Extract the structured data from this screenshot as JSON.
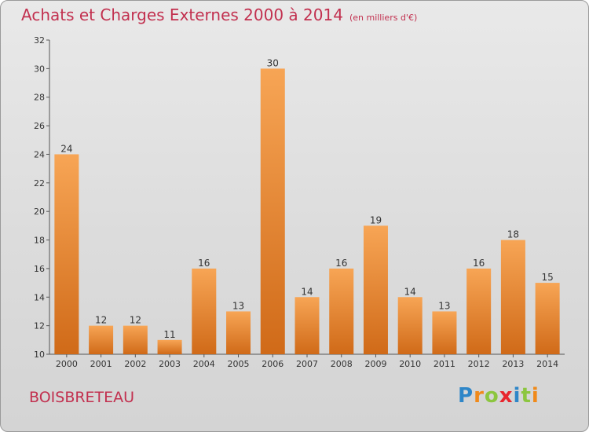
{
  "header": {
    "title": "Achats et Charges Externes 2000 à 2014",
    "unit": "(en milliers d'€)"
  },
  "footer": {
    "commune": "BOISBRETEAU",
    "brand_letters": [
      {
        "ch": "P",
        "color": "#2e86c8"
      },
      {
        "ch": "r",
        "color": "#f08a1a"
      },
      {
        "ch": "o",
        "color": "#8cc63f"
      },
      {
        "ch": "x",
        "color": "#e8262e"
      },
      {
        "ch": "i",
        "color": "#2e86c8"
      },
      {
        "ch": "t",
        "color": "#8cc63f"
      },
      {
        "ch": "i",
        "color": "#f08a1a"
      }
    ]
  },
  "chart_data": {
    "type": "bar",
    "title": "Achats et Charges Externes 2000 à 2014",
    "categories": [
      "2000",
      "2001",
      "2002",
      "2003",
      "2004",
      "2005",
      "2006",
      "2007",
      "2008",
      "2009",
      "2010",
      "2011",
      "2012",
      "2013",
      "2014"
    ],
    "values": [
      24,
      12,
      12,
      11,
      16,
      13,
      30,
      14,
      16,
      19,
      14,
      13,
      16,
      18,
      15
    ],
    "ylim": [
      10,
      32
    ],
    "yticks": [
      10,
      12,
      14,
      16,
      18,
      20,
      22,
      24,
      26,
      28,
      30,
      32
    ],
    "grid": false,
    "bar_color_top": "#f7a555",
    "bar_color_bottom": "#d06a18"
  }
}
